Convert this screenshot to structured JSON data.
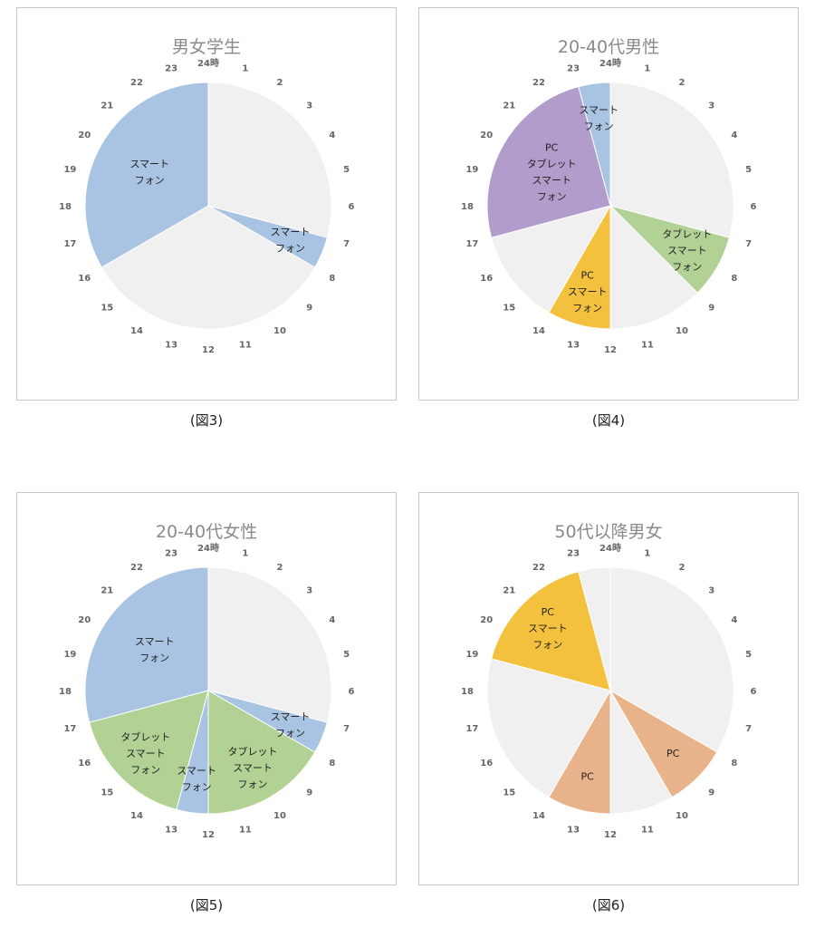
{
  "hour_labels": [
    "24時",
    "1",
    "2",
    "3",
    "4",
    "5",
    "6",
    "7",
    "8",
    "9",
    "10",
    "11",
    "12",
    "13",
    "14",
    "15",
    "16",
    "17",
    "18",
    "19",
    "20",
    "21",
    "22",
    "23"
  ],
  "colors": {
    "none": "#f0f0f0",
    "smartphone": "#a9c3e3",
    "tablet_smartphone": "#b2d295",
    "pc_smartphone": "#f4c13f",
    "pc_tablet_smartphone": "#b29ccb",
    "pc": "#e8b38a"
  },
  "charts": [
    {
      "title": "男女学生",
      "caption": "(図3)",
      "chart_data": {
        "type": "pie",
        "unit": "hours",
        "slices": [
          {
            "start": 0,
            "end": 7,
            "color_key": "none",
            "label": []
          },
          {
            "start": 7,
            "end": 8,
            "color_key": "smartphone",
            "label": [
              "スマート",
              "フォン"
            ]
          },
          {
            "start": 8,
            "end": 16,
            "color_key": "none",
            "label": []
          },
          {
            "start": 16,
            "end": 24,
            "color_key": "smartphone",
            "label": [
              "スマート",
              "フォン"
            ]
          }
        ]
      }
    },
    {
      "title": "20-40代男性",
      "caption": "(図4)",
      "chart_data": {
        "type": "pie",
        "unit": "hours",
        "slices": [
          {
            "start": 0,
            "end": 7,
            "color_key": "none",
            "label": []
          },
          {
            "start": 7,
            "end": 9,
            "color_key": "tablet_smartphone",
            "label": [
              "タブレット",
              "スマート",
              "フォン"
            ]
          },
          {
            "start": 9,
            "end": 12,
            "color_key": "none",
            "label": []
          },
          {
            "start": 12,
            "end": 14,
            "color_key": "pc_smartphone",
            "label": [
              "PC",
              "スマート",
              "フォン"
            ]
          },
          {
            "start": 14,
            "end": 17,
            "color_key": "none",
            "label": []
          },
          {
            "start": 17,
            "end": 23,
            "color_key": "pc_tablet_smartphone",
            "label": [
              "PC",
              "タブレット",
              "スマート",
              "フォン"
            ]
          },
          {
            "start": 23,
            "end": 24,
            "color_key": "smartphone",
            "label": [
              "スマート",
              "フォン"
            ]
          }
        ]
      }
    },
    {
      "title": "20-40代女性",
      "caption": "(図5)",
      "chart_data": {
        "type": "pie",
        "unit": "hours",
        "slices": [
          {
            "start": 0,
            "end": 7,
            "color_key": "none",
            "label": []
          },
          {
            "start": 7,
            "end": 8,
            "color_key": "smartphone",
            "label": [
              "スマート",
              "フォン"
            ]
          },
          {
            "start": 8,
            "end": 12,
            "color_key": "tablet_smartphone",
            "label": [
              "タブレット",
              "スマート",
              "フォン"
            ]
          },
          {
            "start": 12,
            "end": 13,
            "color_key": "smartphone",
            "label": [
              "スマート",
              "フォン"
            ]
          },
          {
            "start": 13,
            "end": 17,
            "color_key": "tablet_smartphone",
            "label": [
              "タブレット",
              "スマート",
              "フォン"
            ]
          },
          {
            "start": 17,
            "end": 24,
            "color_key": "smartphone",
            "label": [
              "スマート",
              "フォン"
            ]
          }
        ]
      }
    },
    {
      "title": "50代以降男女",
      "caption": "(図6)",
      "chart_data": {
        "type": "pie",
        "unit": "hours",
        "slices": [
          {
            "start": 0,
            "end": 8,
            "color_key": "none",
            "label": []
          },
          {
            "start": 8,
            "end": 10,
            "color_key": "pc",
            "label": [
              "PC"
            ]
          },
          {
            "start": 10,
            "end": 12,
            "color_key": "none",
            "label": []
          },
          {
            "start": 12,
            "end": 14,
            "color_key": "pc",
            "label": [
              "PC"
            ]
          },
          {
            "start": 14,
            "end": 19,
            "color_key": "none",
            "label": []
          },
          {
            "start": 19,
            "end": 23,
            "color_key": "pc_smartphone",
            "label": [
              "PC",
              "スマート",
              "フォン"
            ]
          },
          {
            "start": 23,
            "end": 24,
            "color_key": "none",
            "label": []
          }
        ]
      }
    }
  ]
}
